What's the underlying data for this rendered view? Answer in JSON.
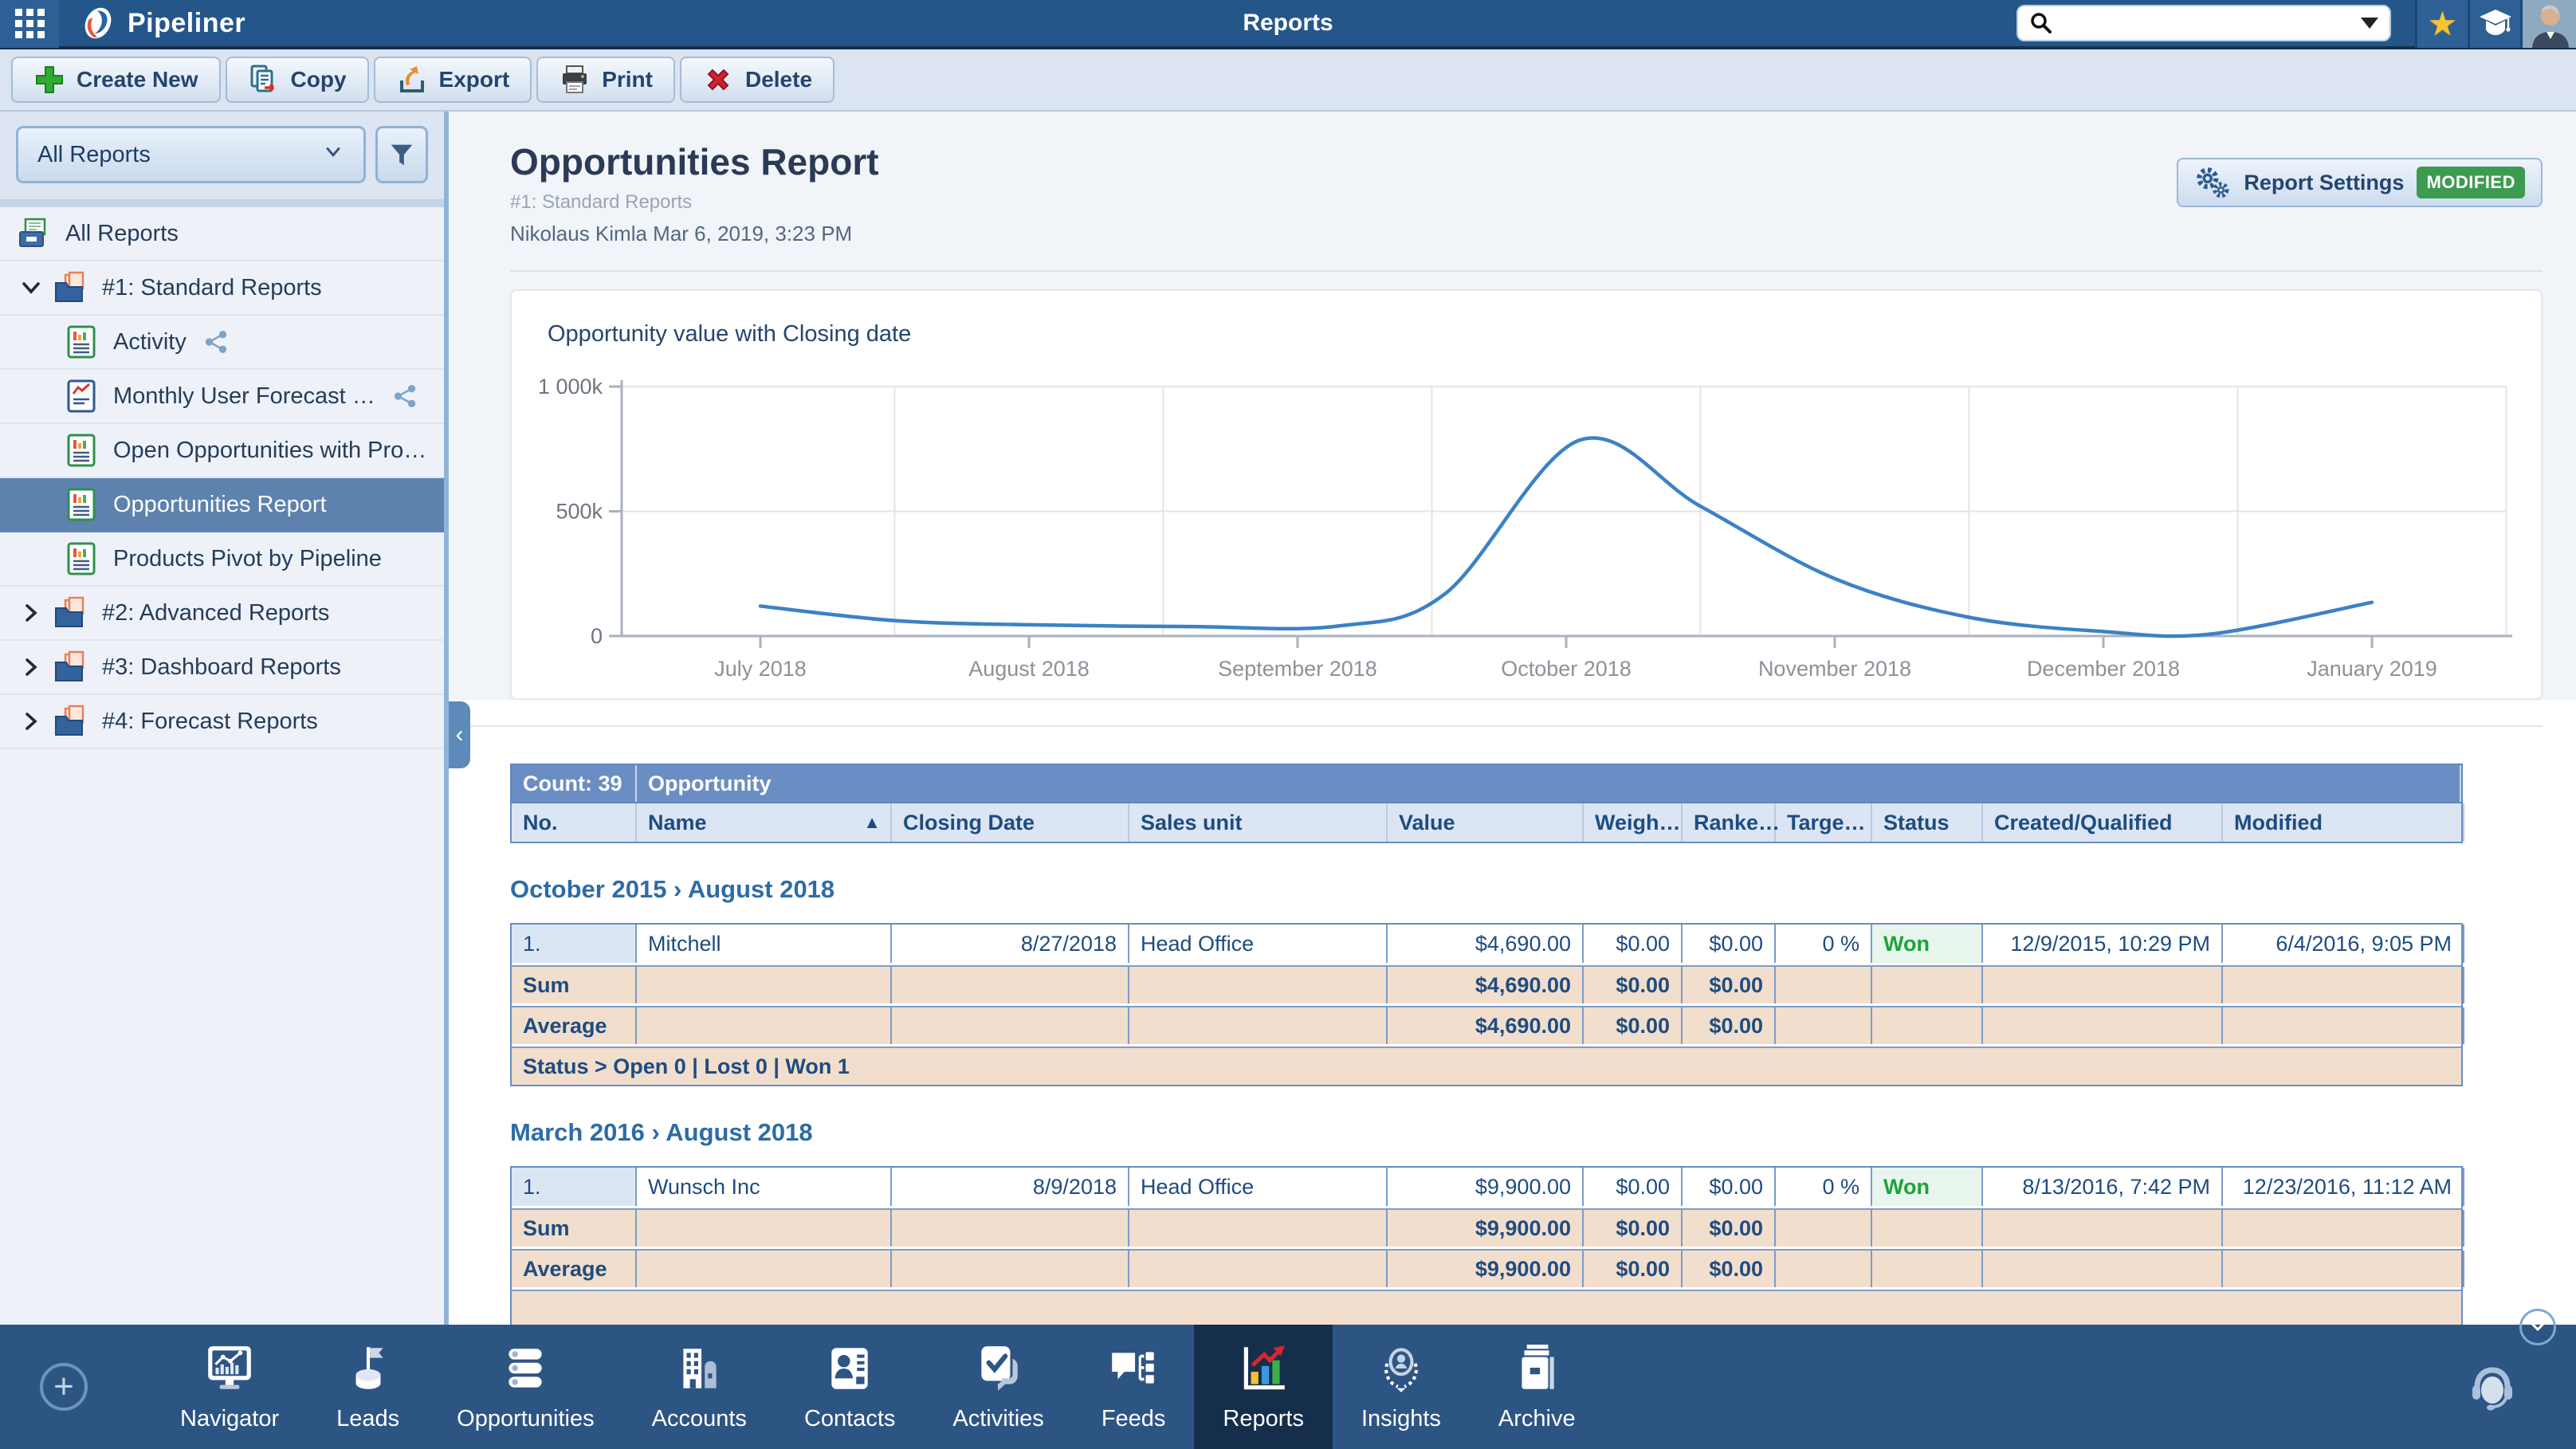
{
  "topbar": {
    "app_name": "Pipeliner",
    "page_title": "Reports"
  },
  "toolbar": {
    "buttons": [
      {
        "label": "Create New",
        "icon": "plus"
      },
      {
        "label": "Copy",
        "icon": "copy"
      },
      {
        "label": "Export",
        "icon": "export"
      },
      {
        "label": "Print",
        "icon": "print"
      },
      {
        "label": "Delete",
        "icon": "delete"
      }
    ]
  },
  "sidebar": {
    "filter_dropdown": "All Reports",
    "tree": [
      {
        "label": "All Reports",
        "kind": "root"
      },
      {
        "label": "#1: Standard Reports",
        "kind": "folder",
        "expanded": true
      },
      {
        "label": "Activity",
        "kind": "report",
        "shared": true
      },
      {
        "label": "Monthly User Forecast …",
        "kind": "report-chart",
        "shared": true
      },
      {
        "label": "Open Opportunities with Pro…",
        "kind": "report"
      },
      {
        "label": "Opportunities Report",
        "kind": "report",
        "selected": true
      },
      {
        "label": "Products Pivot by Pipeline",
        "kind": "report"
      },
      {
        "label": "#2: Advanced Reports",
        "kind": "folder",
        "expanded": false
      },
      {
        "label": "#3: Dashboard Reports",
        "kind": "folder",
        "expanded": false
      },
      {
        "label": "#4: Forecast Reports",
        "kind": "folder",
        "expanded": false
      }
    ]
  },
  "report_header": {
    "title": "Opportunities Report",
    "subtitle": "#1: Standard Reports",
    "meta": "Nikolaus Kimla Mar 6, 2019, 3:23 PM",
    "settings_label": "Report Settings",
    "modified_badge": "MODIFIED"
  },
  "chart_data": {
    "type": "line",
    "title": "Opportunity value with Closing date",
    "x_tick_labels": [
      "July 2018",
      "August 2018",
      "September 2018",
      "October 2018",
      "November 2018",
      "December 2018",
      "January 2019"
    ],
    "y_tick_labels": [
      "0",
      "500k",
      "1 000k"
    ],
    "y_max": 1000000,
    "grid": true,
    "series": [
      {
        "name": "Opportunity value",
        "color": "#3b82c4",
        "points": [
          [
            0,
            120000
          ],
          [
            0.5,
            62000
          ],
          [
            1,
            45000
          ],
          [
            1.6,
            38000
          ],
          [
            2.15,
            40000
          ],
          [
            2.55,
            170000
          ],
          [
            3.05,
            785000
          ],
          [
            3.5,
            520000
          ],
          [
            4,
            230000
          ],
          [
            4.5,
            75000
          ],
          [
            5,
            18000
          ],
          [
            5.4,
            8000
          ],
          [
            6,
            135000
          ]
        ]
      }
    ]
  },
  "table": {
    "count_label": "Count: 39",
    "group_label": "Opportunity",
    "columns": [
      "No.",
      "Name",
      "Closing Date",
      "Sales unit",
      "Value",
      "Weigh…",
      "Ranke…",
      "Targe…",
      "Status",
      "Created/Qualified",
      "Modified"
    ],
    "sorted_column": "Name",
    "sections": [
      {
        "heading": "October 2015 › August 2018",
        "rows": [
          [
            "1.",
            "Mitchell",
            "8/27/2018",
            "Head Office",
            "$4,690.00",
            "$0.00",
            "$0.00",
            "0 %",
            "Won",
            "12/9/2015, 10:29 PM",
            "6/4/2016, 9:05 PM"
          ]
        ],
        "sum": [
          "Sum",
          "",
          "",
          "",
          "$4,690.00",
          "$0.00",
          "$0.00",
          "",
          "",
          "",
          ""
        ],
        "average": [
          "Average",
          "",
          "",
          "",
          "$4,690.00",
          "$0.00",
          "$0.00",
          "",
          "",
          "",
          ""
        ],
        "status_line": "Status > Open 0 | Lost 0 | Won 1"
      },
      {
        "heading": "March 2016 › August 2018",
        "rows": [
          [
            "1.",
            "Wunsch Inc",
            "8/9/2018",
            "Head Office",
            "$9,900.00",
            "$0.00",
            "$0.00",
            "0 %",
            "Won",
            "8/13/2016, 7:42 PM",
            "12/23/2016, 11:12 AM"
          ]
        ],
        "sum": [
          "Sum",
          "",
          "",
          "",
          "$9,900.00",
          "$0.00",
          "$0.00",
          "",
          "",
          "",
          ""
        ],
        "average": [
          "Average",
          "",
          "",
          "",
          "$9,900.00",
          "$0.00",
          "$0.00",
          "",
          "",
          "",
          ""
        ],
        "status_line": ""
      }
    ]
  },
  "bottom_nav": {
    "items": [
      {
        "label": "Navigator",
        "icon": "navigator",
        "active": false
      },
      {
        "label": "Leads",
        "icon": "leads",
        "active": false
      },
      {
        "label": "Opportunities",
        "icon": "opportunities",
        "active": false
      },
      {
        "label": "Accounts",
        "icon": "accounts",
        "active": false
      },
      {
        "label": "Contacts",
        "icon": "contacts",
        "active": false
      },
      {
        "label": "Activities",
        "icon": "activities",
        "active": false
      },
      {
        "label": "Feeds",
        "icon": "feeds",
        "active": false
      },
      {
        "label": "Reports",
        "icon": "reports",
        "active": true
      },
      {
        "label": "Insights",
        "icon": "insights",
        "active": false
      },
      {
        "label": "Archive",
        "icon": "archive",
        "active": false
      }
    ]
  },
  "colors": {
    "topbar_blue": "#245689",
    "nav_blue": "#2d5584",
    "nav_active": "#142e4c",
    "chart_line": "#3b82c4",
    "won_green": "#1ea23c",
    "badge_green": "#3d9b4f",
    "agg_tan": "#f1decd",
    "selected_row": "#5d82ae"
  }
}
